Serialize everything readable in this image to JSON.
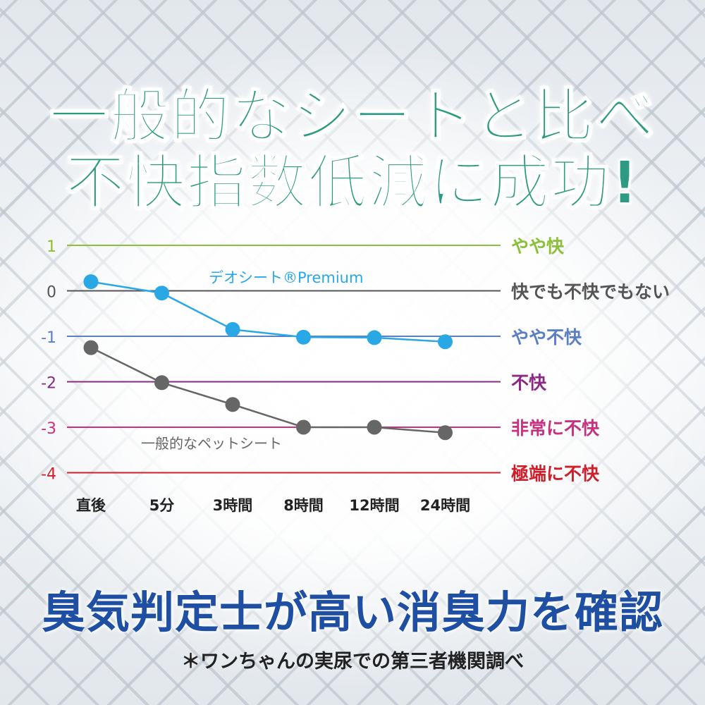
{
  "headline": {
    "line1": "一般的なシートと比べ",
    "line2": "不快指数低減に成功!"
  },
  "tagline": "臭気判定士が高い消臭力を確認",
  "footnote": "＊ワンちゃんの実尿での第三者機関調べ",
  "chart_data": {
    "type": "line",
    "title": "",
    "xlabel": "",
    "ylabel": "",
    "x": [
      "直後",
      "5分",
      "3時間",
      "8時間",
      "12時間",
      "24時間"
    ],
    "ylim": [
      -4,
      1
    ],
    "grid": true,
    "legend": "inline labels near lines",
    "reference_lines": [
      {
        "value": 1,
        "tick": "1",
        "label": "やや快",
        "color": "#8cbf3a"
      },
      {
        "value": 0,
        "tick": "0",
        "label": "快でも不快でもない",
        "color": "#555555"
      },
      {
        "value": -1,
        "tick": "-1",
        "label": "やや不快",
        "color": "#5b7fc4"
      },
      {
        "value": -2,
        "tick": "-2",
        "label": "不快",
        "color": "#8a2a84"
      },
      {
        "value": -3,
        "tick": "-3",
        "label": "非常に不快",
        "color": "#c9307f"
      },
      {
        "value": -4,
        "tick": "-4",
        "label": "極端に不快",
        "color": "#d01f2b"
      }
    ],
    "series": [
      {
        "name": "デオシート®Premium",
        "color": "#2aa8e6",
        "values": [
          0.2,
          -0.05,
          -0.85,
          -1.02,
          -1.03,
          -1.12
        ]
      },
      {
        "name": "一般的なペットシート",
        "color": "#666666",
        "values": [
          -1.25,
          -2.02,
          -2.5,
          -3.0,
          -3.0,
          -3.12
        ]
      }
    ]
  }
}
